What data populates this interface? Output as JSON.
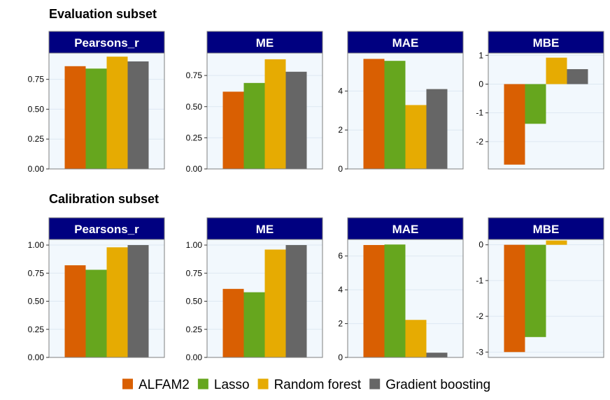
{
  "colors": {
    "strip": "#000080",
    "panel_bg": "#f2f8fd",
    "panel_border": "#7f7f7f",
    "grid": "#dde8f2"
  },
  "legend": [
    {
      "label": "ALFAM2",
      "color": "#d95f02"
    },
    {
      "label": "Lasso",
      "color": "#66a61e"
    },
    {
      "label": "Random forest",
      "color": "#e6ab02"
    },
    {
      "label": "Gradient boosting",
      "color": "#666666"
    }
  ],
  "chart_data": [
    {
      "type": "bar",
      "title": "Evaluation subset",
      "categories": [
        "ALFAM2",
        "Lasso",
        "Random forest",
        "Gradient boosting"
      ],
      "panels": [
        {
          "name": "Pearsons_r",
          "values": [
            0.86,
            0.84,
            0.94,
            0.9
          ],
          "ylim": [
            0,
            0.97
          ],
          "ticks": [
            0,
            0.25,
            0.5,
            0.75
          ],
          "tick_labels": [
            "0.00",
            "0.25",
            "0.50",
            "0.75"
          ]
        },
        {
          "name": "ME",
          "values": [
            0.62,
            0.69,
            0.88,
            0.78
          ],
          "ylim": [
            0,
            0.93
          ],
          "ticks": [
            0,
            0.25,
            0.5,
            0.75
          ],
          "tick_labels": [
            "0.00",
            "0.25",
            "0.50",
            "0.75"
          ]
        },
        {
          "name": "MAE",
          "values": [
            5.65,
            5.55,
            3.28,
            4.1
          ],
          "ylim": [
            0,
            5.95
          ],
          "ticks": [
            0,
            2,
            4
          ],
          "tick_labels": [
            "0",
            "2",
            "4"
          ]
        },
        {
          "name": "MBE",
          "values": [
            -2.8,
            -1.38,
            0.92,
            0.52
          ],
          "ylim": [
            -2.95,
            1.08
          ],
          "ticks": [
            -2,
            -1,
            0,
            1
          ],
          "tick_labels": [
            "-2",
            "-1",
            "0",
            "1"
          ]
        }
      ]
    },
    {
      "type": "bar",
      "title": "Calibration subset",
      "categories": [
        "ALFAM2",
        "Lasso",
        "Random forest",
        "Gradient boosting"
      ],
      "panels": [
        {
          "name": "Pearsons_r",
          "values": [
            0.82,
            0.78,
            0.98,
            1.0
          ],
          "ylim": [
            0,
            1.05
          ],
          "ticks": [
            0,
            0.25,
            0.5,
            0.75,
            1
          ],
          "tick_labels": [
            "0.00",
            "0.25",
            "0.50",
            "0.75",
            "1.00"
          ]
        },
        {
          "name": "ME",
          "values": [
            0.61,
            0.58,
            0.96,
            1.0
          ],
          "ylim": [
            0,
            1.05
          ],
          "ticks": [
            0,
            0.25,
            0.5,
            0.75,
            1
          ],
          "tick_labels": [
            "0.00",
            "0.25",
            "0.50",
            "0.75",
            "1.00"
          ]
        },
        {
          "name": "MAE",
          "values": [
            6.65,
            6.68,
            2.22,
            0.28
          ],
          "ylim": [
            0,
            6.98
          ],
          "ticks": [
            0,
            2,
            4,
            6
          ],
          "tick_labels": [
            "0",
            "2",
            "4",
            "6"
          ]
        },
        {
          "name": "MBE",
          "values": [
            -3.0,
            -2.58,
            0.12,
            0.0
          ],
          "ylim": [
            -3.15,
            0.15
          ],
          "ticks": [
            -3,
            -2,
            -1,
            0
          ],
          "tick_labels": [
            "-3",
            "-2",
            "-1",
            "0"
          ]
        }
      ]
    }
  ]
}
